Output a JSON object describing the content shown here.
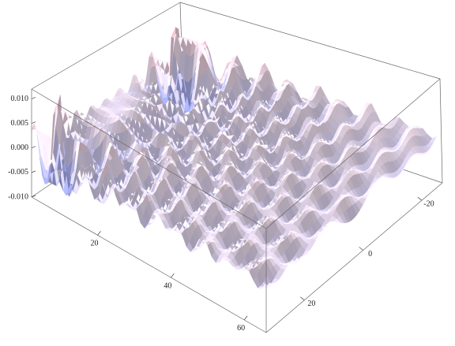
{
  "chart_data": {
    "type": "surface",
    "xlim": [
      2,
      66
    ],
    "xticks": [
      20,
      40,
      60
    ],
    "ylim": [
      -27,
      33
    ],
    "yticks": [
      -20,
      0,
      20
    ],
    "zlim": [
      -0.01,
      0.012
    ],
    "zticks": [
      {
        "value": -0.01,
        "label": "-0.010"
      },
      {
        "value": -0.005,
        "label": "-0.005"
      },
      {
        "value": 0,
        "label": "0.000"
      },
      {
        "value": 0.005,
        "label": "0.005"
      },
      {
        "value": 0.01,
        "label": "0.010"
      }
    ],
    "box": true
  }
}
